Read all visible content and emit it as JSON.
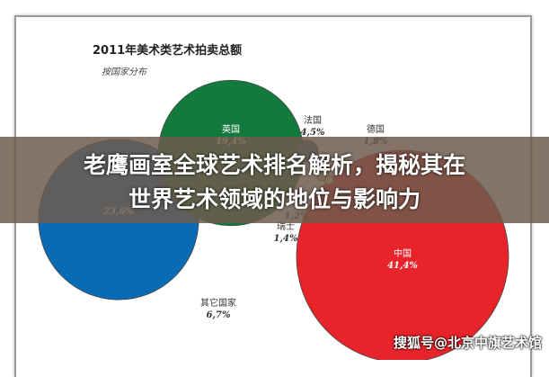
{
  "chart_data": {
    "type": "bubble",
    "title": "2011年美术类艺术拍卖总额",
    "subtitle": "按国家分布",
    "unit": "%",
    "series": [
      {
        "label": "中国",
        "value": 41.4,
        "value_text": "41,4%",
        "color": "#e8232a"
      },
      {
        "label": "",
        "value": 23.6,
        "value_text": "23,6%",
        "color": "#0a6bb5"
      },
      {
        "label": "英国",
        "value": 19.4,
        "value_text": "19,4%",
        "color": "#137a3d"
      },
      {
        "label": "其它国家",
        "value": 6.7,
        "value_text": "6,7%",
        "color": "#ffffff"
      },
      {
        "label": "法国",
        "value": 4.5,
        "value_text": "4,5%",
        "color": "#3a6f8f"
      },
      {
        "label": "德国",
        "value": 1.8,
        "value_text": "1,8%",
        "color": "#e0c040"
      },
      {
        "label": "瑞士",
        "value": 1.4,
        "value_text": "1,4%",
        "color": "#e8e0a0"
      },
      {
        "label": "",
        "value": 1.2,
        "value_text": "1,2%",
        "color": "#e0d090"
      }
    ]
  },
  "headline": {
    "line1": "老鹰画室全球艺术排名解析，揭秘其在",
    "line2": "世界艺术领域的地位与影响力"
  },
  "watermark": "搜狐号@北京中旗艺术馆"
}
